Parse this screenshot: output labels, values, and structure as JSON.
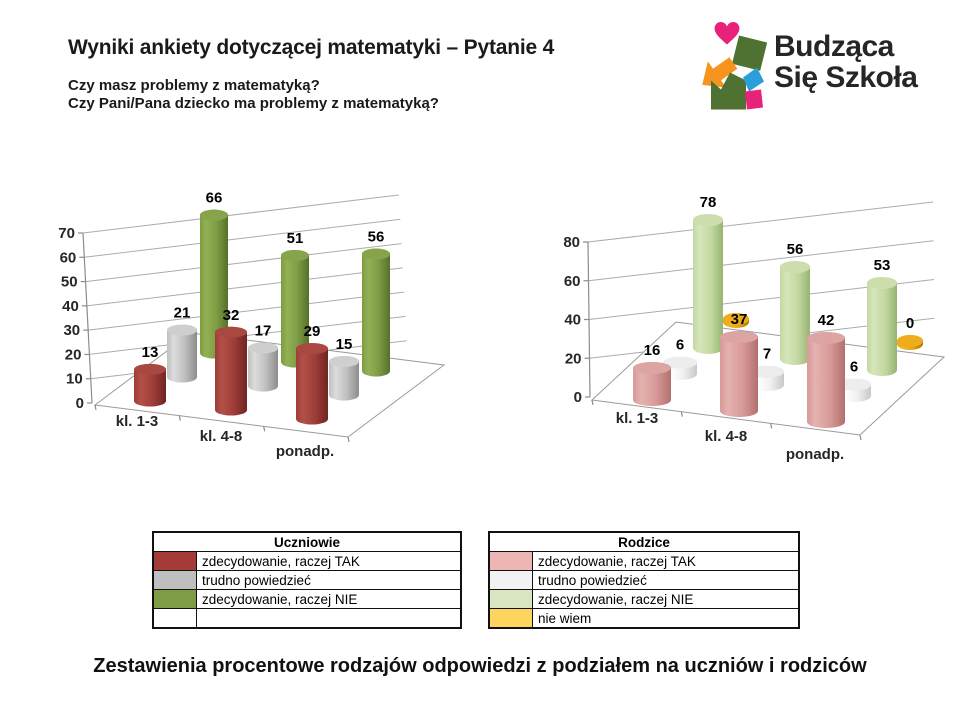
{
  "header": {
    "title": "Wyniki ankiety dotyczącej matematyki – Pytanie 4",
    "subtitle_line1": "Czy masz problemy z matematyką?",
    "subtitle_line2": "Czy Pani/Pana dziecko ma problemy z matematyką?"
  },
  "logo": {
    "line1": "Budząca",
    "line2": "Się Szkoła",
    "colors": {
      "pink": "#E8217A",
      "green": "#4F7233",
      "orange": "#F7941E",
      "blue": "#2D9FD8",
      "text": "#262626"
    }
  },
  "caption": "Zestawienia procentowe rodzajów odpowiedzi z podziałem na uczniów i rodziców",
  "chart_data": [
    {
      "type": "bar",
      "variant": "3d-cylinder",
      "group": "Uczniowie",
      "categories": [
        "kl. 1-3",
        "kl. 4-8",
        "ponadp."
      ],
      "ylim": [
        0,
        70
      ],
      "ytick": 10,
      "yticks": [
        0,
        10,
        20,
        30,
        40,
        50,
        60,
        70
      ],
      "grid": true,
      "series": [
        {
          "name": "zdecydowanie, raczej TAK",
          "values": [
            13,
            32,
            29
          ],
          "label_shown": [
            true,
            true,
            true
          ],
          "colors": {
            "light": "#B25048",
            "mid": "#9E3C38",
            "dark": "#6F2523",
            "top": "#A84840"
          }
        },
        {
          "name": "trudno powiedzieć",
          "values": [
            21,
            17,
            15
          ],
          "label_shown": [
            true,
            true,
            true
          ],
          "colors": {
            "light": "#DCDCDC",
            "mid": "#BFBFBF",
            "dark": "#8C8C8C",
            "top": "#CFCFCF"
          }
        },
        {
          "name": "zdecydowanie, raczej NIE",
          "values": [
            66,
            51,
            56
          ],
          "label_shown": [
            true,
            true,
            true
          ],
          "colors": {
            "light": "#93B055",
            "mid": "#7D9C43",
            "dark": "#55702B",
            "top": "#87A44B"
          }
        }
      ]
    },
    {
      "type": "bar",
      "variant": "3d-cylinder",
      "group": "Rodzice",
      "categories": [
        "kl. 1-3",
        "kl. 4-8",
        "ponadp."
      ],
      "ylim": [
        0,
        80
      ],
      "ytick": 20,
      "yticks": [
        0,
        20,
        40,
        60,
        80
      ],
      "grid": true,
      "series": [
        {
          "name": "zdecydowanie, raczej TAK",
          "values": [
            16,
            37,
            42
          ],
          "label_shown": [
            true,
            true,
            true
          ],
          "colors": {
            "light": "#E4B2B0",
            "mid": "#D89A98",
            "dark": "#B1706E",
            "top": "#DCA4A2"
          }
        },
        {
          "name": "trudno powiedzieć",
          "values": [
            6,
            7,
            6
          ],
          "label_shown": [
            true,
            true,
            true
          ],
          "colors": {
            "light": "#FFFFFF",
            "mid": "#F0F0F0",
            "dark": "#C8C8C8",
            "top": "#EDEDED"
          }
        },
        {
          "name": "zdecydowanie, raczej NIE",
          "values": [
            78,
            56,
            53
          ],
          "label_shown": [
            true,
            true,
            true
          ],
          "colors": {
            "light": "#D6E6BC",
            "mid": "#C3D8A1",
            "dark": "#97B473",
            "top": "#CBDEAC"
          }
        },
        {
          "name": "nie wiem",
          "values": [
            0,
            0,
            0
          ],
          "label_shown": [
            false,
            false,
            true
          ],
          "bar_shown": [
            true,
            false,
            true
          ],
          "colors": {
            "light": "#F2B32B",
            "mid": "#E8A50F",
            "dark": "#A87500",
            "top": "#EDAD1C"
          }
        }
      ]
    }
  ],
  "legends": [
    {
      "title": "Uczniowie",
      "rows": [
        {
          "swatch": "#A33B38",
          "label": "zdecydowanie, raczej TAK"
        },
        {
          "swatch": "#BFBFBF",
          "label": "trudno powiedzieć"
        },
        {
          "swatch": "#7D9C43",
          "label": "zdecydowanie, raczej NIE"
        },
        {
          "swatch": "",
          "label": ""
        }
      ]
    },
    {
      "title": "Rodzice",
      "rows": [
        {
          "swatch": "#EDB6B4",
          "label": "zdecydowanie, raczej TAK"
        },
        {
          "swatch": "#F2F2F2",
          "label": "trudno powiedzieć"
        },
        {
          "swatch": "#D9E5C1",
          "label": "zdecydowanie, raczej NIE"
        },
        {
          "swatch": "#FFD45E",
          "label": "nie wiem"
        }
      ]
    }
  ]
}
